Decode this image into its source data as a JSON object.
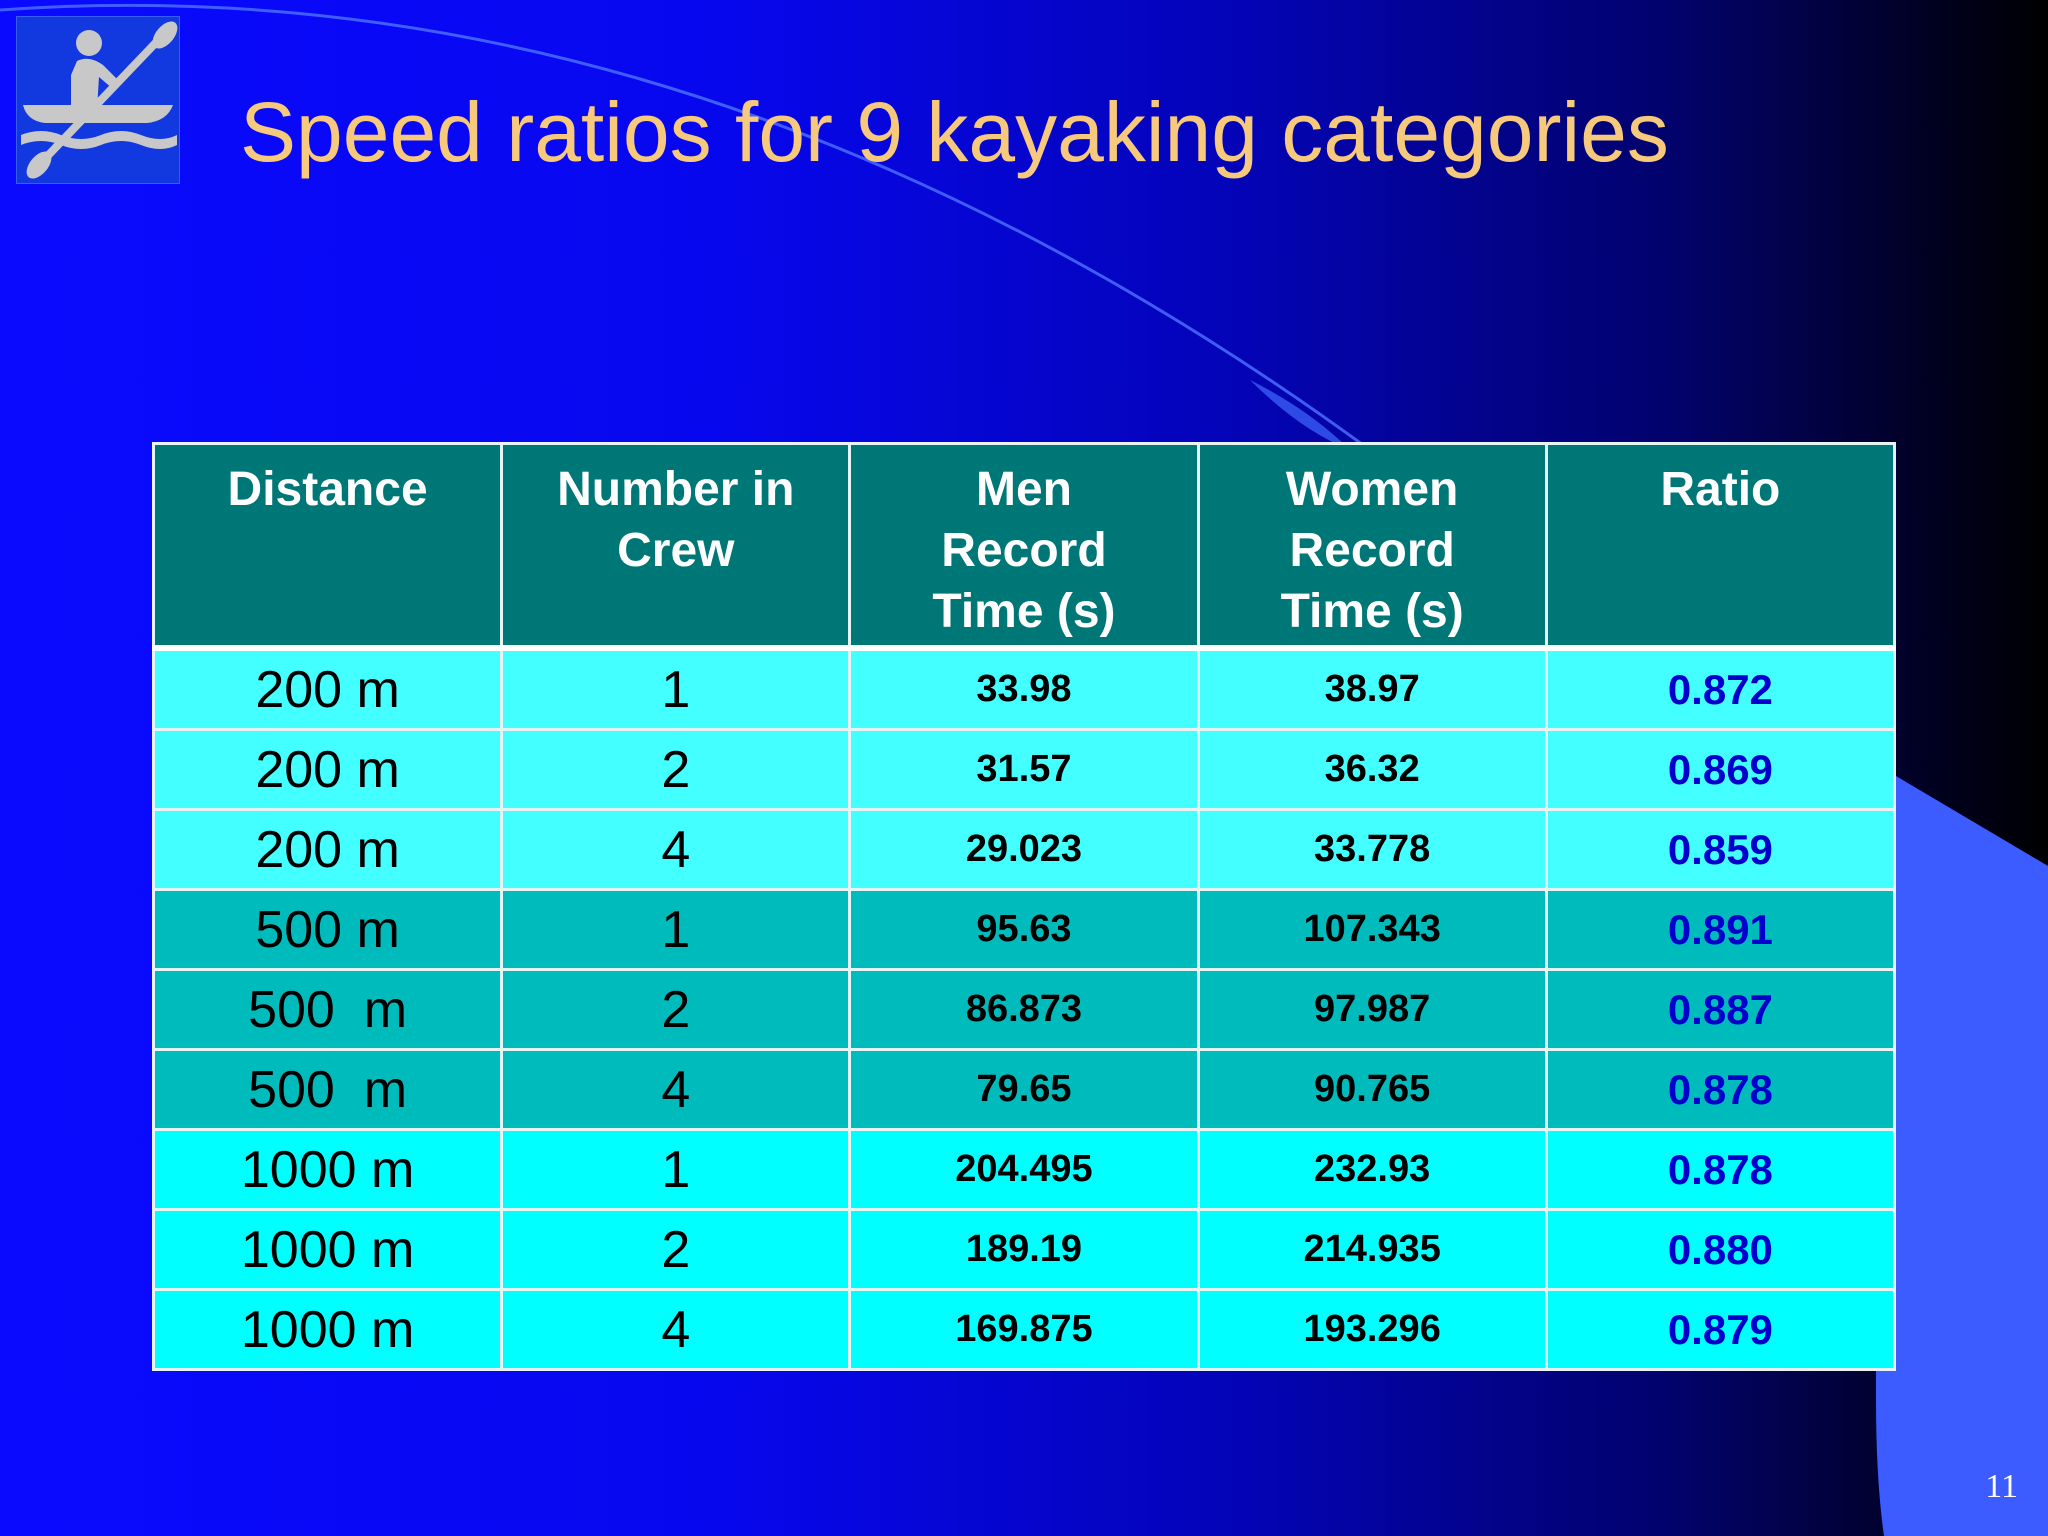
{
  "slide": {
    "title": "Speed ratios for 9 kayaking categories",
    "page_number": "11",
    "logo_icon": "kayaker-icon"
  },
  "colors": {
    "title": "#f7c97c",
    "header_bg": "#007777",
    "row_group_200": "#44ffff",
    "row_group_500": "#00bbbb",
    "row_group_1000": "#00ffff",
    "ratio_text": "#0000cc"
  },
  "table": {
    "headers": [
      [
        "Distance"
      ],
      [
        "Number in",
        "Crew"
      ],
      [
        "Men",
        "Record",
        "Time (s)"
      ],
      [
        "Women",
        "Record",
        "Time (s)"
      ],
      [
        "Ratio"
      ]
    ],
    "rows": [
      {
        "distance": "200 m",
        "crew": "1",
        "men": "33.98",
        "women": "38.97",
        "ratio": "0.872"
      },
      {
        "distance": "200 m",
        "crew": "2",
        "men": "31.57",
        "women": "36.32",
        "ratio": "0.869"
      },
      {
        "distance": "200 m",
        "crew": "4",
        "men": "29.023",
        "women": "33.778",
        "ratio": "0.859"
      },
      {
        "distance": "500 m",
        "crew": "1",
        "men": "95.63",
        "women": "107.343",
        "ratio": "0.891"
      },
      {
        "distance": "500  m",
        "crew": "2",
        "men": "86.873",
        "women": "97.987",
        "ratio": "0.887"
      },
      {
        "distance": "500  m",
        "crew": "4",
        "men": "79.65",
        "women": "90.765",
        "ratio": "0.878"
      },
      {
        "distance": "1000 m",
        "crew": "1",
        "men": "204.495",
        "women": "232.93",
        "ratio": "0.878"
      },
      {
        "distance": "1000 m",
        "crew": "2",
        "men": "189.19",
        "women": "214.935",
        "ratio": "0.880"
      },
      {
        "distance": "1000 m",
        "crew": "4",
        "men": "169.875",
        "women": "193.296",
        "ratio": "0.879"
      }
    ]
  }
}
